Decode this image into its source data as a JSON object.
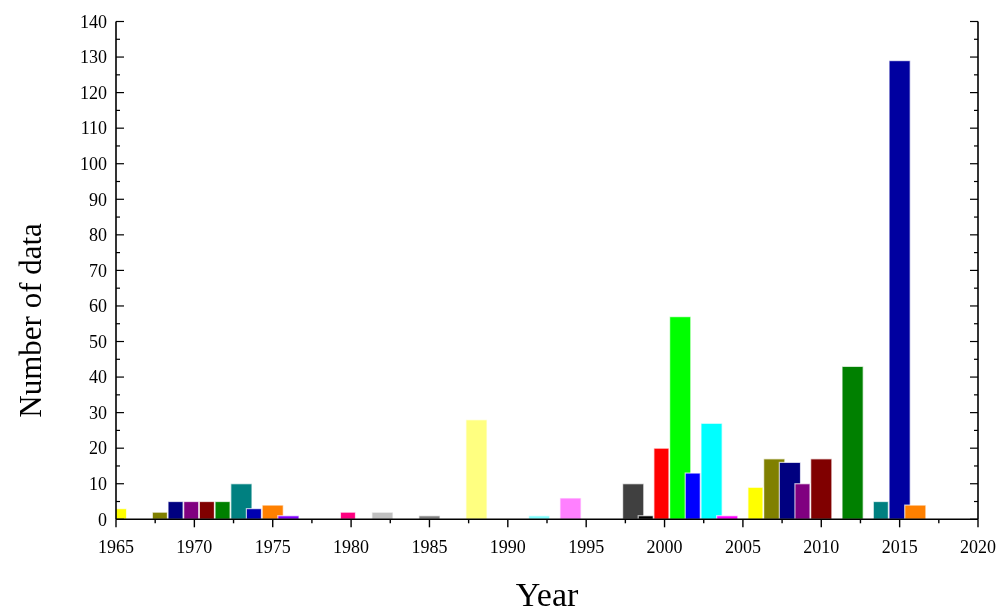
{
  "chart_data": {
    "type": "bar",
    "xlabel": "Year",
    "ylabel": "Number of data",
    "xlim": [
      1965,
      2020
    ],
    "xticks": [
      1965,
      {
        "value": 1967.5,
        "label": null
      },
      1970,
      {
        "value": 1972.5,
        "label": null
      },
      1975,
      {
        "value": 1977.5,
        "label": null
      },
      1980,
      {
        "value": 1982.5,
        "label": null
      },
      1985,
      {
        "value": 1987.5,
        "label": null
      },
      1990,
      {
        "value": 1992.5,
        "label": null
      },
      1995,
      {
        "value": 1997.5,
        "label": null
      },
      2000,
      {
        "value": 2002.5,
        "label": null
      },
      2005,
      {
        "value": 2007.5,
        "label": null
      },
      2010,
      {
        "value": 2012.5,
        "label": null
      },
      2015,
      {
        "value": 2017.5,
        "label": null
      },
      2020
    ],
    "ylim": [
      0,
      140
    ],
    "yticks": [
      0,
      {
        "value": 5,
        "label": null
      },
      10,
      {
        "value": 15,
        "label": null
      },
      20,
      {
        "value": 25,
        "label": null
      },
      30,
      {
        "value": 35,
        "label": null
      },
      40,
      {
        "value": 45,
        "label": null
      },
      50,
      {
        "value": 55,
        "label": null
      },
      60,
      {
        "value": 65,
        "label": null
      },
      70,
      {
        "value": 75,
        "label": null
      },
      80,
      {
        "value": 85,
        "label": null
      },
      90,
      {
        "value": 95,
        "label": null
      },
      100,
      {
        "value": 105,
        "label": null
      },
      110,
      {
        "value": 115,
        "label": null
      },
      120,
      {
        "value": 125,
        "label": null
      },
      130,
      {
        "value": 135,
        "label": null
      },
      140
    ],
    "series": [
      {
        "x": [
          1965,
          1973,
          1975,
          1976,
          1982,
          1985,
          1988,
          1992,
          1994,
          1998,
          2001,
          2003,
          2004,
          2007,
          2008,
          2010,
          2012,
          2015,
          2016
        ],
        "values": [
          3,
          10,
          4,
          1,
          2,
          1,
          28,
          1,
          6,
          10,
          57,
          27,
          1,
          17,
          16,
          17,
          43,
          129,
          4
        ],
        "colors": [
          "#ffff00",
          "#008080",
          "#ff8000",
          "#8000ff",
          "#c0c0c0",
          "#808080",
          "#ffff80",
          "#80ffff",
          "#ff80ff",
          "#404040",
          "#00ff00",
          "#00ffff",
          "#ff00ff",
          "#808000",
          "#000080",
          "#800000",
          "#008000",
          "#0000a0",
          "#ff8000"
        ]
      },
      {
        "x": [
          1967.8,
          1968.8,
          1969.8,
          1970.8,
          1971.8,
          1973.8,
          1979.8,
          1998.8,
          1999.8,
          2001.8,
          2005.8,
          2008.8,
          2013.8
        ],
        "values": [
          2,
          5,
          5,
          5,
          5,
          3,
          2,
          1,
          20,
          13,
          9,
          10,
          5
        ],
        "colors": [
          "#808000",
          "#000080",
          "#800080",
          "#800000",
          "#008000",
          "#0000b0",
          "#ff0080",
          "#000000",
          "#ff0000",
          "#0000ff",
          "#ffff00",
          "#800080",
          "#008080"
        ]
      }
    ]
  }
}
